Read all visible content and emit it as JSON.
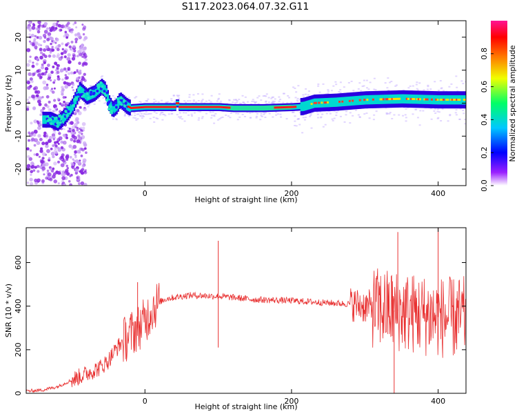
{
  "title": "S117.2023.064.07.32.G11",
  "chart_data": [
    {
      "type": "heatmap",
      "xlabel": "Height of straight line (km)",
      "ylabel": "Frequency (Hz)",
      "xlim": [
        -162,
        438
      ],
      "ylim": [
        -25,
        25
      ],
      "xticks": [
        0,
        200,
        400
      ],
      "yticks": [
        -20,
        -10,
        0,
        10,
        20
      ],
      "colorbar": {
        "label": "Normalized spectral amplitude",
        "range": [
          0,
          1
        ],
        "ticks": [
          "0.0",
          "0.2",
          "0.4",
          "0.6",
          "0.8"
        ],
        "colormap": [
          "#ffffff",
          "#8a00ff",
          "#0000ff",
          "#00c8ff",
          "#00ff66",
          "#f0ff00",
          "#ff7a00",
          "#ff0000",
          "#ff1493"
        ]
      },
      "ridge": {
        "x": [
          -130,
          -120,
          -110,
          -100,
          -90,
          -80,
          -70,
          -60,
          -55,
          -50,
          -45,
          -40,
          -35,
          -30,
          -25,
          -20,
          0,
          40,
          43,
          46,
          100,
          120,
          160,
          200,
          215,
          230,
          260,
          300,
          350,
          400,
          438
        ],
        "y": [
          -5,
          -6,
          -4,
          -1,
          4,
          2,
          3,
          5,
          4,
          0,
          -2,
          -1,
          1,
          0,
          -1,
          -1.5,
          -1.2,
          -1.2,
          0.5,
          -1.2,
          -1.2,
          -1.5,
          -1.5,
          -1.2,
          -1.0,
          0,
          0.3,
          1.0,
          1.3,
          1.0,
          1.0
        ]
      },
      "grid": false
    },
    {
      "type": "line",
      "xlabel": "Height of straight line (km)",
      "ylabel": "SNR (10 * v/v)",
      "xlim": [
        -162,
        438
      ],
      "ylim": [
        0,
        760
      ],
      "xticks": [
        0,
        200,
        400
      ],
      "yticks": [
        0,
        200,
        400,
        600
      ],
      "series": [
        {
          "color": "#e83030",
          "x": [
            -162,
            -140,
            -120,
            -100,
            -80,
            -60,
            -50,
            -40,
            -30,
            -20,
            -10,
            0,
            10,
            20,
            30,
            40,
            60,
            80,
            100,
            120,
            150,
            200,
            250,
            280,
            300,
            320,
            340,
            360,
            380,
            400,
            420,
            438
          ],
          "y": [
            10,
            15,
            30,
            60,
            90,
            120,
            150,
            200,
            240,
            270,
            300,
            330,
            390,
            420,
            435,
            440,
            450,
            448,
            445,
            440,
            430,
            425,
            415,
            410,
            400,
            390,
            380,
            370,
            360,
            350,
            345,
            350
          ]
        }
      ],
      "spikes": [
        {
          "x": 100,
          "y": 700
        },
        {
          "x": 100,
          "y": 210
        },
        {
          "x": -10,
          "y": 510
        },
        {
          "x": 400,
          "y": 760
        },
        {
          "x": 340,
          "y": 0
        },
        {
          "x": 345,
          "y": 740
        }
      ],
      "grid": false
    }
  ]
}
